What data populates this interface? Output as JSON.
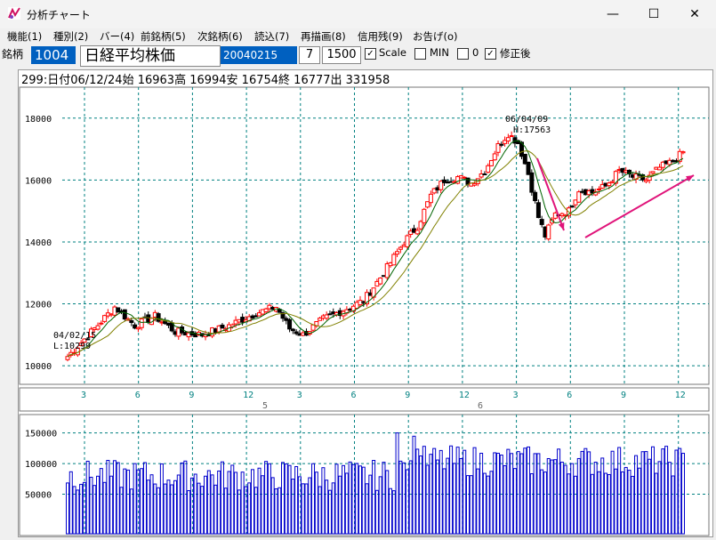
{
  "window": {
    "title": "分析チャート",
    "buttons": {
      "minimize": "—",
      "maximize": "☐",
      "close": "✕"
    }
  },
  "menu": [
    {
      "label": "機能(1)"
    },
    {
      "label": "種別(2)"
    },
    {
      "label": "バー(4)"
    },
    {
      "label": "前銘柄(5)"
    },
    {
      "label": "次銘柄(6)"
    },
    {
      "label": "読込(7)"
    },
    {
      "label": "再描画(8)"
    },
    {
      "label": "信用残(9)"
    },
    {
      "label": "お告げ(o)"
    }
  ],
  "toolbar": {
    "label": "銘柄",
    "code": "1004",
    "name": "日経平均株価",
    "date": "20040215",
    "period": "7",
    "count": "1500",
    "scale_label": "Scale",
    "min_label": "MIN",
    "zero_label": "0",
    "adjusted_label": "修正後",
    "scale_checked": "✓",
    "adjusted_checked": "✓"
  },
  "info_line": "299:日付06/12/24始 16963高 16994安 16754終 16777出 331958",
  "annotations": {
    "high_date": "06/04/09",
    "high_label": "H:17563",
    "low_date": "04/02/15",
    "low_label": "L:10299"
  },
  "colors": {
    "up": "#ff0000",
    "down": "#000000",
    "ma_short": "#006400",
    "ma_long": "#808000",
    "grid": "#008080",
    "volume": "#0000cc",
    "arrow": "#e0147a"
  },
  "chart_data": [
    {
      "type": "candlestick",
      "x_tick_labels": [
        "3",
        "6",
        "9",
        "12",
        "3",
        "6",
        "9",
        "12",
        "3",
        "6",
        "9",
        "12"
      ],
      "year_labels": [
        "5",
        "6"
      ],
      "y_ticks": [
        10000,
        12000,
        14000,
        16000,
        18000
      ],
      "ylim": [
        9400,
        19000
      ],
      "grid": true,
      "trend_points": [
        [
          0,
          10300
        ],
        [
          8,
          11200
        ],
        [
          14,
          11900
        ],
        [
          20,
          11300
        ],
        [
          26,
          11600
        ],
        [
          32,
          11100
        ],
        [
          40,
          11000
        ],
        [
          48,
          11300
        ],
        [
          56,
          11700
        ],
        [
          62,
          11900
        ],
        [
          66,
          11200
        ],
        [
          70,
          11000
        ],
        [
          76,
          11500
        ],
        [
          82,
          11800
        ],
        [
          88,
          12100
        ],
        [
          94,
          13000
        ],
        [
          100,
          14000
        ],
        [
          104,
          14500
        ],
        [
          108,
          15500
        ],
        [
          112,
          16000
        ],
        [
          116,
          16100
        ],
        [
          120,
          15900
        ],
        [
          124,
          16300
        ],
        [
          128,
          17100
        ],
        [
          131,
          17500
        ],
        [
          134,
          17200
        ],
        [
          137,
          16200
        ],
        [
          140,
          14800
        ],
        [
          142,
          14200
        ],
        [
          145,
          14900
        ],
        [
          149,
          15000
        ],
        [
          152,
          15700
        ],
        [
          156,
          15600
        ],
        [
          160,
          15800
        ],
        [
          164,
          16300
        ],
        [
          168,
          16100
        ],
        [
          172,
          16000
        ],
        [
          176,
          16400
        ],
        [
          180,
          16600
        ],
        [
          183,
          16900
        ]
      ]
    },
    {
      "type": "bar",
      "name": "volume",
      "y_ticks": [
        50000,
        100000,
        150000
      ],
      "ylim": [
        0,
        180000
      ]
    }
  ]
}
